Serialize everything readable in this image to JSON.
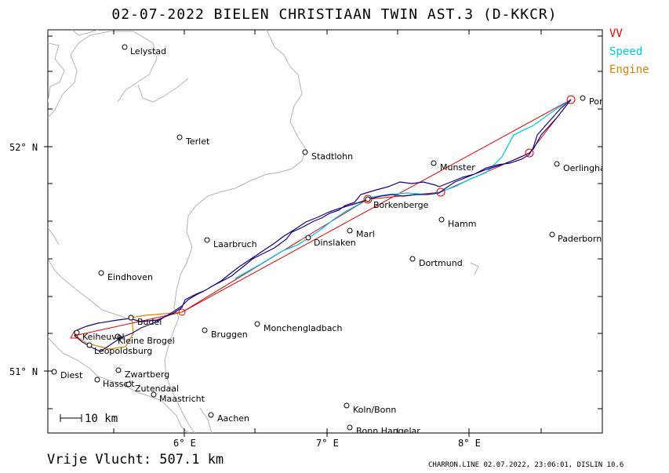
{
  "title": "02-07-2022   BIELEN CHRISTIAAN   TWIN AST.3 (D-KKCR)",
  "legend": {
    "vv": "VV",
    "speed": "Speed",
    "engine": "Engine"
  },
  "colors": {
    "vv": "#e00000",
    "speed": "#00c8e8",
    "engine": "#e08000",
    "track": "#1a0080",
    "border": "#b0b0b0"
  },
  "axes": {
    "lat_labels": [
      "52° N",
      "51° N"
    ],
    "lon_labels": [
      "6° E",
      "7° E",
      "8° E"
    ]
  },
  "towns": [
    {
      "name": "Lelystad"
    },
    {
      "name": "Terlet"
    },
    {
      "name": "Stadtlohn"
    },
    {
      "name": "Laarbruch"
    },
    {
      "name": "Eindhoven"
    },
    {
      "name": "Budel"
    },
    {
      "name": "Kleine Brogel"
    },
    {
      "name": "Keiheuvel"
    },
    {
      "name": "Leopoldsburg"
    },
    {
      "name": "Diest"
    },
    {
      "name": "Zwartberg"
    },
    {
      "name": "Hasselt"
    },
    {
      "name": "Zutendaal"
    },
    {
      "name": "Maastricht"
    },
    {
      "name": "Aachen"
    },
    {
      "name": "Bruggen"
    },
    {
      "name": "Monchengladbach"
    },
    {
      "name": "Dinslaken"
    },
    {
      "name": "Marl"
    },
    {
      "name": "Borkenberge"
    },
    {
      "name": "Munster"
    },
    {
      "name": "Hamm"
    },
    {
      "name": "Dortmund"
    },
    {
      "name": "Koln/Bonn"
    },
    {
      "name": "Bonn Hangelar"
    },
    {
      "name": "Oerlingha"
    },
    {
      "name": "Paderborn"
    },
    {
      "name": "Por"
    }
  ],
  "scale": {
    "label": "10  km"
  },
  "footer": {
    "distance": "Vrije Vlucht:  507.1 km",
    "info": "CHARRON.LINE 02.07.2022, 23:06:01, DISLIN 10.6"
  }
}
